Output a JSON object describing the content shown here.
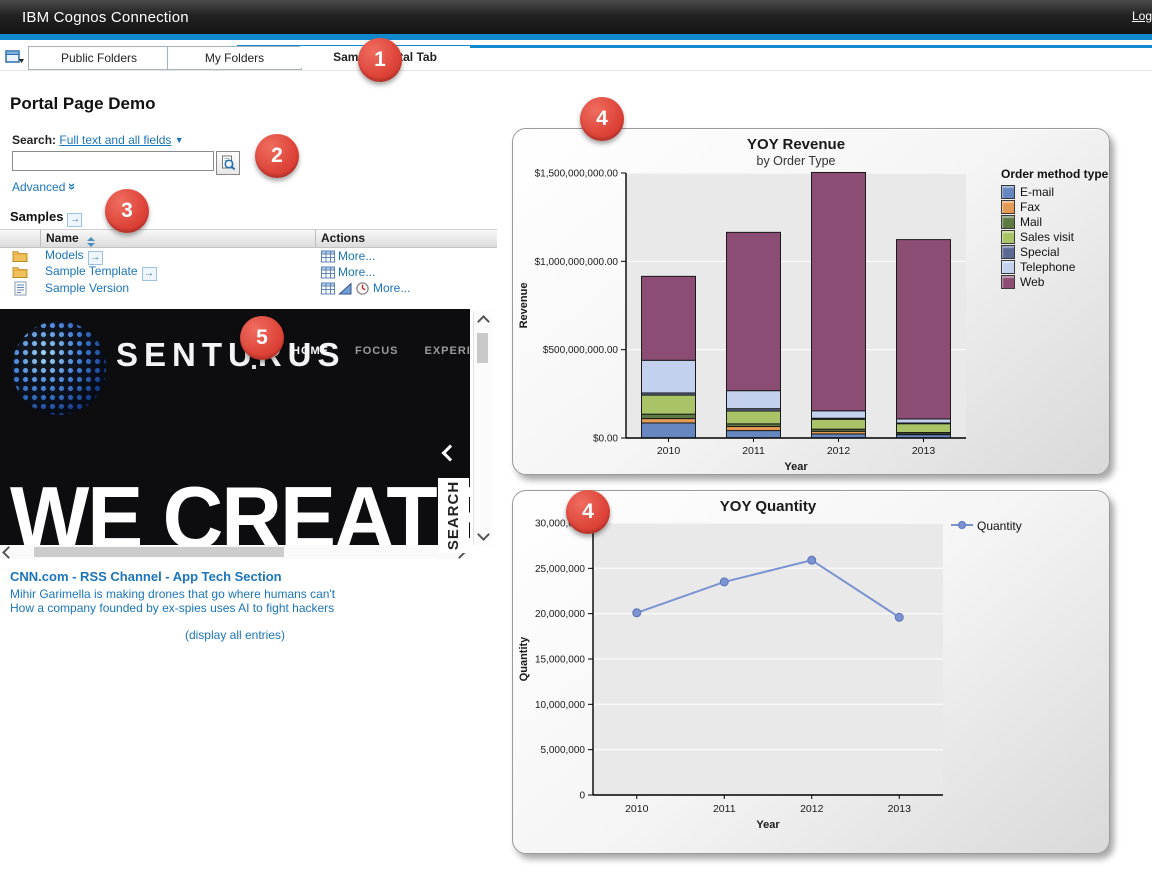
{
  "header": {
    "title": "IBM Cognos Connection",
    "log_link": "Log"
  },
  "tabs": {
    "items": [
      {
        "label": "Public Folders",
        "active": false
      },
      {
        "label": "My Folders",
        "active": false
      },
      {
        "label": "Sample Portal Tab",
        "active": true
      }
    ]
  },
  "callouts": [
    "1",
    "2",
    "3",
    "4",
    "4",
    "5"
  ],
  "page": {
    "title": "Portal Page Demo"
  },
  "search": {
    "label": "Search:",
    "scope_link": "Full text and all fields",
    "input_value": "",
    "advanced_label": "Advanced"
  },
  "samples": {
    "title": "Samples",
    "columns": {
      "name": "Name",
      "actions": "Actions"
    },
    "rows": [
      {
        "name": "Models",
        "type": "folder",
        "open_arrow": true,
        "actions": [
          "properties"
        ],
        "more": "More..."
      },
      {
        "name": "Sample Template",
        "type": "folder",
        "open_arrow": true,
        "actions": [
          "properties"
        ],
        "more": "More..."
      },
      {
        "name": "Sample Version",
        "type": "report",
        "open_arrow": false,
        "actions": [
          "properties",
          "run",
          "schedule"
        ],
        "more": "More..."
      }
    ]
  },
  "banner": {
    "brand": "SENTURUS",
    "nav": [
      "HOME",
      "FOCUS",
      "EXPERIENCE"
    ],
    "headline": "WE CREATE",
    "search_tab": "SEARCH"
  },
  "rss": {
    "title": "CNN.com - RSS Channel - App Tech Section",
    "items": [
      "Mihir Garimella is making drones that go where humans can't",
      "How a company founded by ex-spies uses AI to fight hackers"
    ],
    "footer": "(display all entries)"
  },
  "icons": {
    "open_arrow": "→",
    "dropdown_arrow": "▼",
    "advanced_chevron": "»"
  },
  "colors": {
    "accent_blue": "#1189ce",
    "link_blue": "#1b75bb",
    "badge_red": "#dd4237",
    "plot_bg": "#e9e9e9",
    "gridline": "#f8f8f8"
  },
  "chart_data": [
    {
      "type": "bar",
      "stacked": true,
      "title": "YOY Revenue",
      "subtitle": "by Order Type",
      "xlabel": "Year",
      "ylabel": "Revenue",
      "categories": [
        "2010",
        "2011",
        "2012",
        "2013"
      ],
      "series": [
        {
          "name": "E-mail",
          "color": "#6787c1",
          "values": [
            85000000,
            42000000,
            23000000,
            19000000
          ]
        },
        {
          "name": "Fax",
          "color": "#e39a54",
          "values": [
            25000000,
            23000000,
            15000000,
            4000000
          ]
        },
        {
          "name": "Mail",
          "color": "#5d7a42",
          "values": [
            25000000,
            15000000,
            12000000,
            8000000
          ]
        },
        {
          "name": "Sales visit",
          "color": "#a9c367",
          "values": [
            108000000,
            73000000,
            56000000,
            50000000
          ]
        },
        {
          "name": "Special",
          "color": "#5a6a94",
          "values": [
            12000000,
            13000000,
            6000000,
            4000000
          ]
        },
        {
          "name": "Telephone",
          "color": "#c3d1ee",
          "values": [
            185000000,
            102000000,
            42000000,
            23000000
          ]
        },
        {
          "name": "Web",
          "color": "#8c4d75",
          "values": [
            475000000,
            896000000,
            1349000000,
            1015000000
          ]
        }
      ],
      "ylim": [
        0,
        1500000000
      ],
      "yticks": [
        {
          "v": 0,
          "label": "$0.00"
        },
        {
          "v": 500000000,
          "label": "$500,000,000.00"
        },
        {
          "v": 1000000000,
          "label": "$1,000,000,000.00"
        },
        {
          "v": 1500000000,
          "label": "$1,500,000,000.00"
        }
      ],
      "legend_title": "Order method type",
      "legend_position": "right",
      "grid": true
    },
    {
      "type": "line",
      "title": "YOY Quantity",
      "xlabel": "Year",
      "ylabel": "Quantity",
      "categories": [
        "2010",
        "2011",
        "2012",
        "2013"
      ],
      "series": [
        {
          "name": "Quantity",
          "color": "#7b93d1",
          "values": [
            20100000,
            23500000,
            25900000,
            19600000
          ]
        }
      ],
      "ylim": [
        0,
        30000000
      ],
      "yticks": [
        {
          "v": 0,
          "label": "0"
        },
        {
          "v": 5000000,
          "label": "5,000,000"
        },
        {
          "v": 10000000,
          "label": "10,000,000"
        },
        {
          "v": 15000000,
          "label": "15,000,000"
        },
        {
          "v": 20000000,
          "label": "20,000,000"
        },
        {
          "v": 25000000,
          "label": "25,000,000"
        },
        {
          "v": 30000000,
          "label": "30,000,000"
        }
      ],
      "legend_position": "right",
      "grid": true
    }
  ]
}
